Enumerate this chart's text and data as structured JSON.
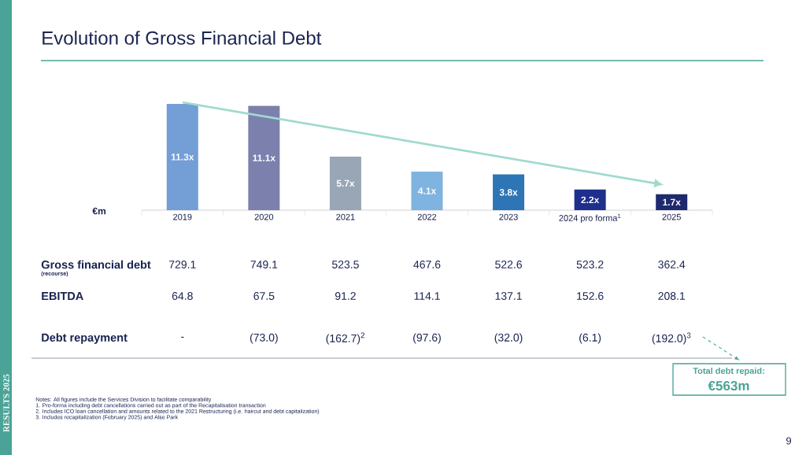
{
  "chart_data": {
    "type": "bar",
    "title": "Evolution of Gross Financial Debt",
    "ylabel": "€m",
    "categories": [
      "2019",
      "2020",
      "2021",
      "2022",
      "2023",
      "2024 pro forma$^{1}$",
      "2025"
    ],
    "values": [
      11.3,
      11.1,
      5.7,
      4.1,
      3.8,
      2.2,
      1.7
    ],
    "value_labels": [
      "11.3x",
      "11.1x",
      "5.7x",
      "4.1x",
      "3.8x",
      "2.2x",
      "1.7x"
    ],
    "colors": [
      "#739ed6",
      "#7b80ad",
      "#98a6b6",
      "#80b4e0",
      "#2e75b6",
      "#1e2f8c",
      "#1f2a6e"
    ],
    "tick_labels": "x",
    "annotations": [
      "Gross financial debt",
      "(recourse)",
      "729.1",
      "749.1",
      "523.5",
      "467.6",
      "522.6",
      "523.2",
      "362.4",
      "EBITDA",
      "64.8",
      "67.5",
      "91.2",
      "114.1",
      "137.1",
      "152.6",
      "208.1",
      "Debt repayment",
      "-",
      "(73.0)",
      "(162.7)$^{2}$",
      "(97.6)",
      "(32.0)",
      "(6.1)",
      "(192.0)$^{3}$",
      "Total debt repaid:",
      "€563m",
      "Notes: All figures include the Services Division to facilitate comparability",
      "1. Pro-forma including debt cancellations carried out as part of the Recapitalisation transaction",
      "2. Includes ICO loan cancellation and amounts related to the 2021 Restructuring (i.e. haircut and debt capitalization)",
      "3. Includes recapitalization (February 2025) and Alse Park",
      "RESULTS 2025",
      "9"
    ]
  }
}
